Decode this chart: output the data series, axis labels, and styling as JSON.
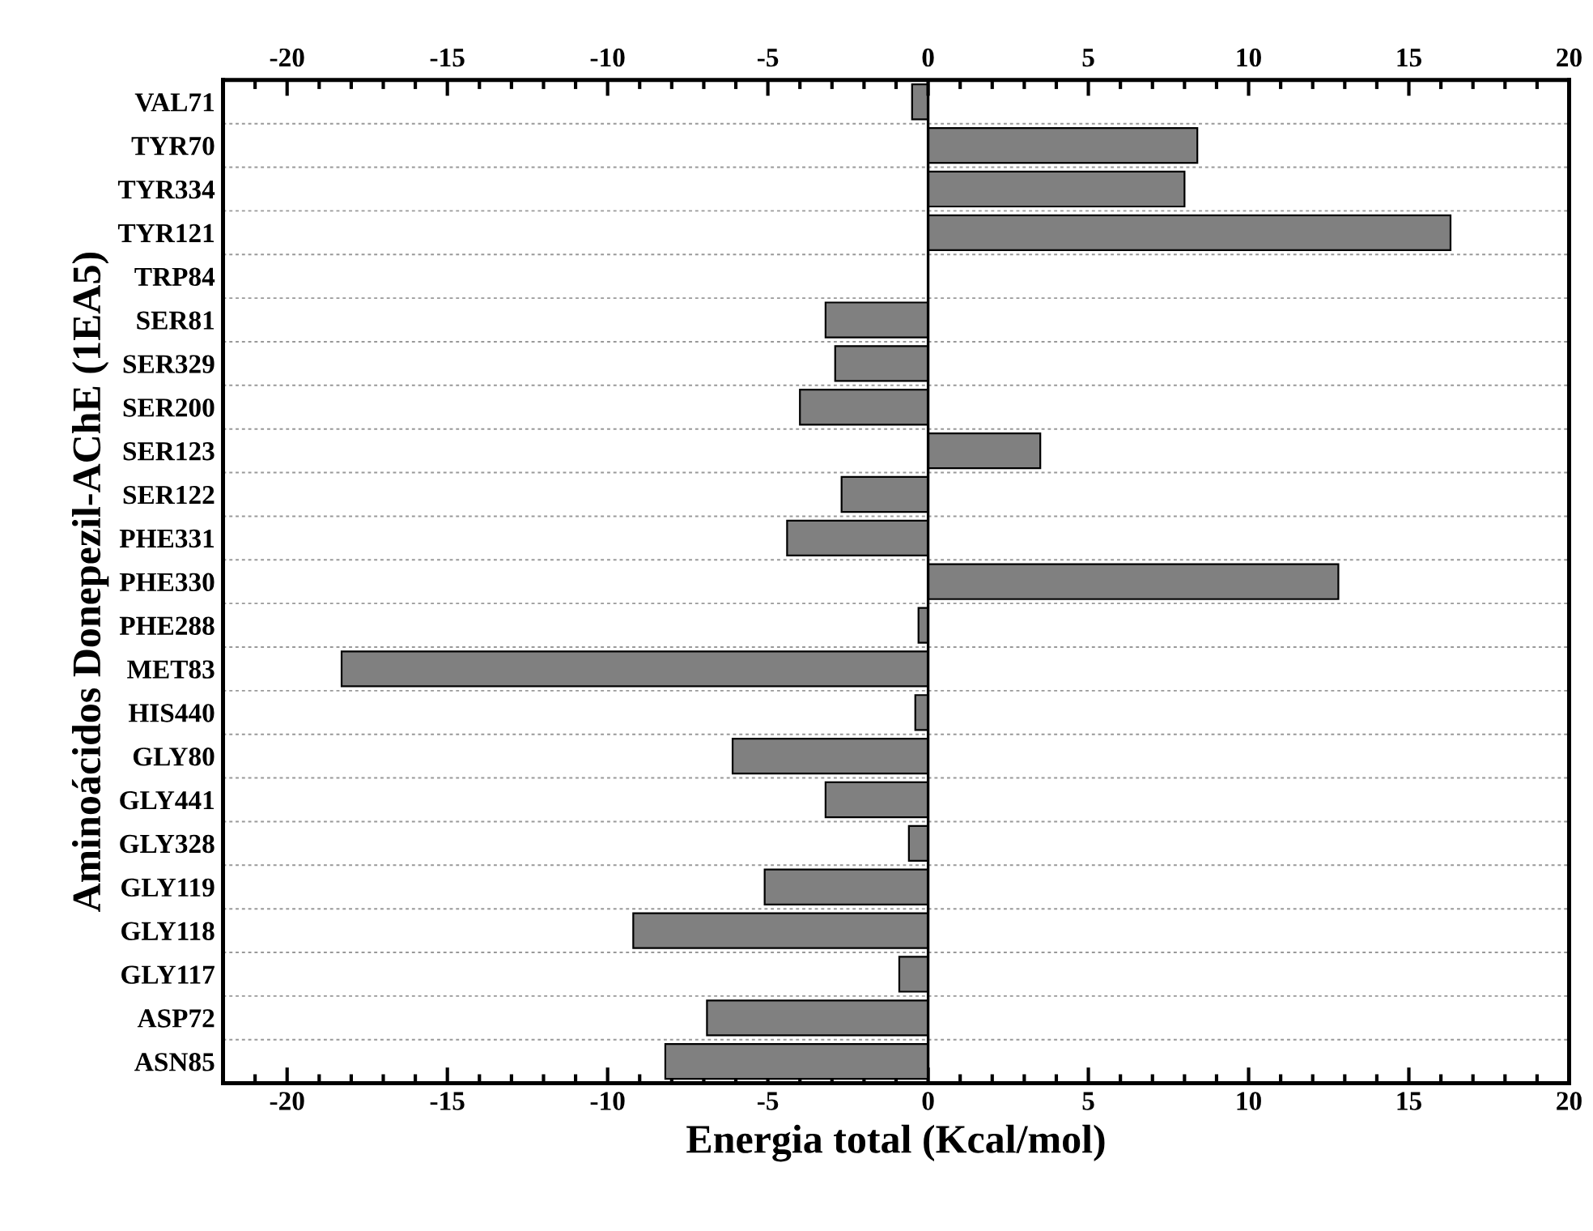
{
  "chart_data": {
    "type": "bar",
    "orientation": "horizontal",
    "xlabel": "Energia total (Kcal/mol)",
    "ylabel": "Aminoácidos Donepezil-AChE (1EA5)",
    "categories": [
      "VAL71",
      "TYR70",
      "TYR334",
      "TYR121",
      "TRP84",
      "SER81",
      "SER329",
      "SER200",
      "SER123",
      "SER122",
      "PHE331",
      "PHE330",
      "PHE288",
      "MET83",
      "HIS440",
      "GLY80",
      "GLY441",
      "GLY328",
      "GLY119",
      "GLY118",
      "GLY117",
      "ASP72",
      "ASN85"
    ],
    "values": [
      -0.5,
      8.4,
      8.0,
      16.3,
      null,
      -3.2,
      -2.9,
      -4.0,
      3.5,
      -2.7,
      -4.4,
      12.8,
      -0.3,
      -18.3,
      -0.4,
      -6.1,
      -3.2,
      -0.6,
      -5.1,
      -9.2,
      -0.9,
      -6.9,
      -8.2
    ],
    "color": "#808080",
    "xlim": [
      -22,
      20
    ],
    "xticks": [
      -20,
      -15,
      -10,
      -5,
      0,
      5,
      10,
      15,
      20
    ],
    "x2lim": [
      -22,
      20
    ],
    "x2ticks": [
      -20,
      -15,
      -10,
      -5,
      0,
      5,
      10,
      15,
      20
    ],
    "grid": "y"
  }
}
